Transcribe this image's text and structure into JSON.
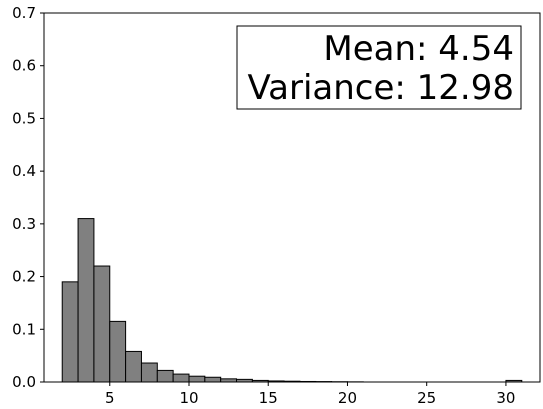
{
  "chart_data": {
    "type": "bar",
    "title": "",
    "xlabel": "",
    "ylabel": "",
    "xlim": [
      0.85,
      32.15
    ],
    "ylim": [
      0,
      0.7
    ],
    "bin_width": 1,
    "bins": [
      {
        "start": 2,
        "value": 0.19
      },
      {
        "start": 3,
        "value": 0.31
      },
      {
        "start": 4,
        "value": 0.22
      },
      {
        "start": 5,
        "value": 0.115
      },
      {
        "start": 6,
        "value": 0.058
      },
      {
        "start": 7,
        "value": 0.036
      },
      {
        "start": 8,
        "value": 0.022
      },
      {
        "start": 9,
        "value": 0.015
      },
      {
        "start": 10,
        "value": 0.011
      },
      {
        "start": 11,
        "value": 0.009
      },
      {
        "start": 12,
        "value": 0.006
      },
      {
        "start": 13,
        "value": 0.005
      },
      {
        "start": 14,
        "value": 0.003
      },
      {
        "start": 15,
        "value": 0.002
      },
      {
        "start": 16,
        "value": 0.0015
      },
      {
        "start": 17,
        "value": 0.001
      },
      {
        "start": 18,
        "value": 0.0008
      },
      {
        "start": 19,
        "value": 0.0005
      },
      {
        "start": 20,
        "value": 0.0003
      },
      {
        "start": 30,
        "value": 0.003
      }
    ],
    "xticks": [
      5,
      10,
      15,
      20,
      25,
      30
    ],
    "xtick_labels": [
      "5",
      "10",
      "15",
      "20",
      "25",
      "30"
    ],
    "yticks": [
      0.0,
      0.1,
      0.2,
      0.3,
      0.4,
      0.5,
      0.6,
      0.7
    ],
    "ytick_labels": [
      "0.0",
      "0.1",
      "0.2",
      "0.3",
      "0.4",
      "0.5",
      "0.6",
      "0.7"
    ],
    "grid": false,
    "bar_color": "#808080",
    "edge_color": "#000000",
    "annotation": {
      "lines": [
        "Mean: 4.54",
        "Variance: 12.98"
      ],
      "placement": "top-right"
    }
  }
}
